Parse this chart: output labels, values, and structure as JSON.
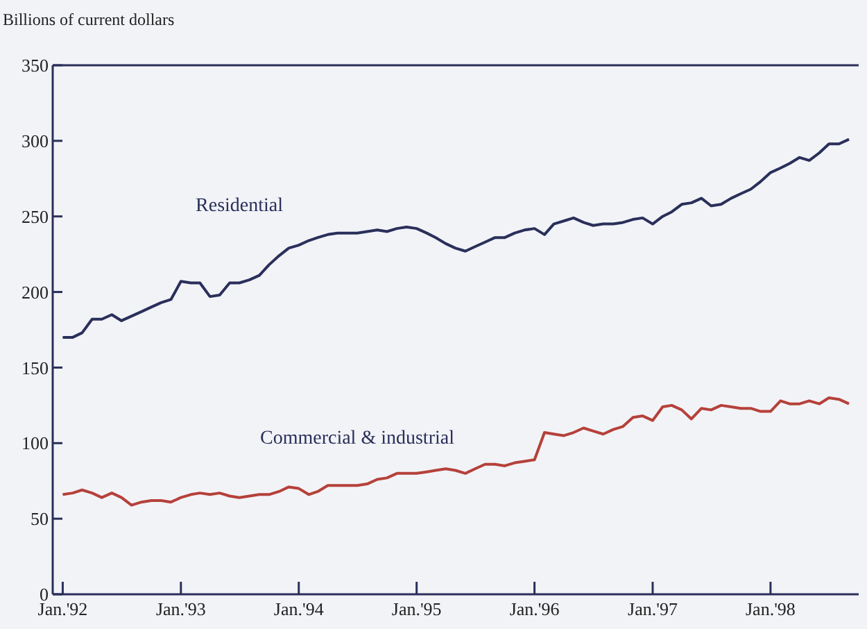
{
  "chart_data": {
    "type": "line",
    "ylabel": "Billions of current dollars",
    "x": [
      "1992-01",
      "1992-02",
      "1992-03",
      "1992-04",
      "1992-05",
      "1992-06",
      "1992-07",
      "1992-08",
      "1992-09",
      "1992-10",
      "1992-11",
      "1992-12",
      "1993-01",
      "1993-02",
      "1993-03",
      "1993-04",
      "1993-05",
      "1993-06",
      "1993-07",
      "1993-08",
      "1993-09",
      "1993-10",
      "1993-11",
      "1993-12",
      "1994-01",
      "1994-02",
      "1994-03",
      "1994-04",
      "1994-05",
      "1994-06",
      "1994-07",
      "1994-08",
      "1994-09",
      "1994-10",
      "1994-11",
      "1994-12",
      "1995-01",
      "1995-02",
      "1995-03",
      "1995-04",
      "1995-05",
      "1995-06",
      "1995-07",
      "1995-08",
      "1995-09",
      "1995-10",
      "1995-11",
      "1995-12",
      "1996-01",
      "1996-02",
      "1996-03",
      "1996-04",
      "1996-05",
      "1996-06",
      "1996-07",
      "1996-08",
      "1996-09",
      "1996-10",
      "1996-11",
      "1996-12",
      "1997-01",
      "1997-02",
      "1997-03",
      "1997-04",
      "1997-05",
      "1997-06",
      "1997-07",
      "1997-08",
      "1997-09",
      "1997-10",
      "1997-11",
      "1997-12",
      "1998-01",
      "1998-02",
      "1998-03",
      "1998-04",
      "1998-05",
      "1998-06",
      "1998-07",
      "1998-08",
      "1998-09"
    ],
    "series": [
      {
        "name": "Residential",
        "color": "#2a2f5a",
        "values": [
          170,
          170,
          173,
          182,
          182,
          185,
          181,
          184,
          187,
          190,
          193,
          195,
          207,
          206,
          206,
          197,
          198,
          206,
          206,
          208,
          211,
          218,
          224,
          229,
          231,
          234,
          236,
          238,
          239,
          239,
          239,
          240,
          241,
          240,
          242,
          243,
          242,
          239,
          236,
          232,
          229,
          227,
          230,
          233,
          236,
          236,
          239,
          241,
          242,
          238,
          245,
          247,
          249,
          246,
          244,
          245,
          245,
          246,
          248,
          249,
          245,
          250,
          253,
          258,
          259,
          262,
          257,
          258,
          262,
          265,
          268,
          273,
          279,
          282,
          285,
          289,
          287,
          292,
          298,
          298,
          301
        ]
      },
      {
        "name": "Commercial & industrial",
        "color": "#b5413a",
        "values": [
          66,
          67,
          69,
          67,
          64,
          67,
          64,
          59,
          61,
          62,
          62,
          61,
          64,
          66,
          67,
          66,
          67,
          65,
          64,
          65,
          66,
          66,
          68,
          71,
          70,
          66,
          68,
          72,
          72,
          72,
          72,
          73,
          76,
          77,
          80,
          80,
          80,
          81,
          82,
          83,
          82,
          80,
          83,
          86,
          86,
          85,
          87,
          88,
          89,
          107,
          106,
          105,
          107,
          110,
          108,
          106,
          109,
          111,
          117,
          118,
          115,
          124,
          125,
          122,
          116,
          123,
          122,
          125,
          124,
          123,
          123,
          121,
          121,
          128,
          126,
          126,
          128,
          126,
          130,
          129,
          126
        ]
      }
    ],
    "xlim": [
      "1991-12-01",
      "1998-10-01"
    ],
    "xticks": [
      {
        "value": "1992-01",
        "label": "Jan.'92"
      },
      {
        "value": "1993-01",
        "label": "Jan.'93"
      },
      {
        "value": "1994-01",
        "label": "Jan.'94"
      },
      {
        "value": "1995-01",
        "label": "Jan.'95"
      },
      {
        "value": "1996-01",
        "label": "Jan.'96"
      },
      {
        "value": "1997-01",
        "label": "Jan.'97"
      },
      {
        "value": "1998-01",
        "label": "Jan.'98"
      }
    ],
    "ylim": [
      0,
      350
    ],
    "yticks": [
      0,
      50,
      100,
      150,
      200,
      250,
      300,
      350
    ],
    "grid": false,
    "legend": false,
    "marker": "none",
    "line_style": "solid"
  }
}
